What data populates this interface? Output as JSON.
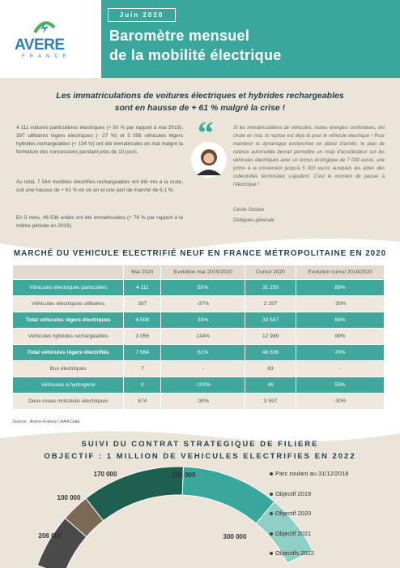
{
  "header": {
    "logo": "AVERE",
    "logo_sub": "FRANCE",
    "date": "Juin 2020",
    "title_lines": [
      "Baromètre mensuel",
      "de la mobilité électrique"
    ]
  },
  "intro": {
    "headline_lines": [
      "Les immatriculations de voitures électriques et hybrides rechargeables",
      "sont en hausse de + 61 % malgré la crise !"
    ],
    "paragraphs": [
      "4 111 voitures particulières électriques (+ 50 % par rapport à mai 2019), 397 utilitaires légers électriques (- 37 %) et 3 056 véhicules légers hybrides rechargeables (+ 134 %) ont été immatriculés en mai malgré la fermeture des concessions pendant près de 10 jours.",
      "Au total, 7 564 modèles électrifiés rechargeables ont été mis à la route, soit une hausse de + 61 % en un an et une part de marché de 6,1 %.",
      "En 5 mois, 46 536 unités ont été immatriculées (+ 76 % par rapport à la même période en 2019)."
    ],
    "quote": "Si les immatriculations de véhicules, toutes énergies confondues, ont chuté en mai, la reprise est déjà là pour le véhicule électrique ! Pour maintenir la dynamique enclenchée en début d'année, le plan de relance automobile devrait permettre un coup d'accélérateur sur les véhicules électriques avec un bonus écologique de 7 000 euros, une prime à la conversion jusqu'à 5 000 euros auxquels les aides des collectivités territoriales s'ajoutent. C'est le moment de passer à l'électrique !",
    "author": "Cécile Goubet",
    "role": "Déléguée générale"
  },
  "table": {
    "title": "MARCHÉ DU VEHICULE ELECTRIFIÉ NEUF EN FRANCE MÉTROPOLITAINE EN 2020",
    "columns": [
      "Mai 2020",
      "Evolution mai 2019/2020",
      "Cumul 2020",
      "Evolution cumul 2019/2020"
    ],
    "rows": [
      [
        "Véhicules électriques particuliers",
        "4 111",
        "50%",
        "31 250",
        "89%"
      ],
      [
        "Véhicules électriques utilitaires",
        "397",
        "-37%",
        "2 297",
        "-30%"
      ],
      [
        "Total véhicules légers électriques",
        "4 508",
        "33%",
        "33 547",
        "69%"
      ],
      [
        "Véhicules hybrides rechargeables",
        "3 056",
        "134%",
        "12 989",
        "99%"
      ],
      [
        "Total véhicules légers électrifiés",
        "7 564",
        "61%",
        "46 536",
        "76%"
      ],
      [
        "Bus électriques",
        "7",
        "-",
        "63",
        "-"
      ],
      [
        "Véhicules à hydrogène",
        "0",
        "-100%",
        "46",
        "53%"
      ],
      [
        "Deux-roues motorisés électriques",
        "874",
        "-30%",
        "3 597",
        "-30%"
      ]
    ],
    "highlighted_rows": [
      0,
      2,
      4,
      6
    ],
    "bold_rows": [
      2,
      4
    ]
  },
  "source": "Source : Avere-France / AAA Data",
  "gauge": {
    "title_lines": [
      "SUIVI DU CONTRAT STRATEGIQUE DE FILIERE",
      "OBJECTIF : 1 MILLION DE VEHICULES ELECTRIFIES EN 2022"
    ],
    "segments": [
      {
        "label": "206 000",
        "color": "#4a4a4a"
      },
      {
        "label": "100 000",
        "color": "#7a6a55"
      },
      {
        "label": "170 000",
        "color": "#1f5f4f"
      },
      {
        "label": "230 000",
        "color": "#3aa79c"
      },
      {
        "label": "300 000",
        "color": "#8fd0c6"
      }
    ],
    "legend": [
      "Parc roulant au 31/12/2018",
      "Objectif 2019",
      "Objectif 2020",
      "Objectif 2021",
      "Objectifs 2022"
    ]
  }
}
